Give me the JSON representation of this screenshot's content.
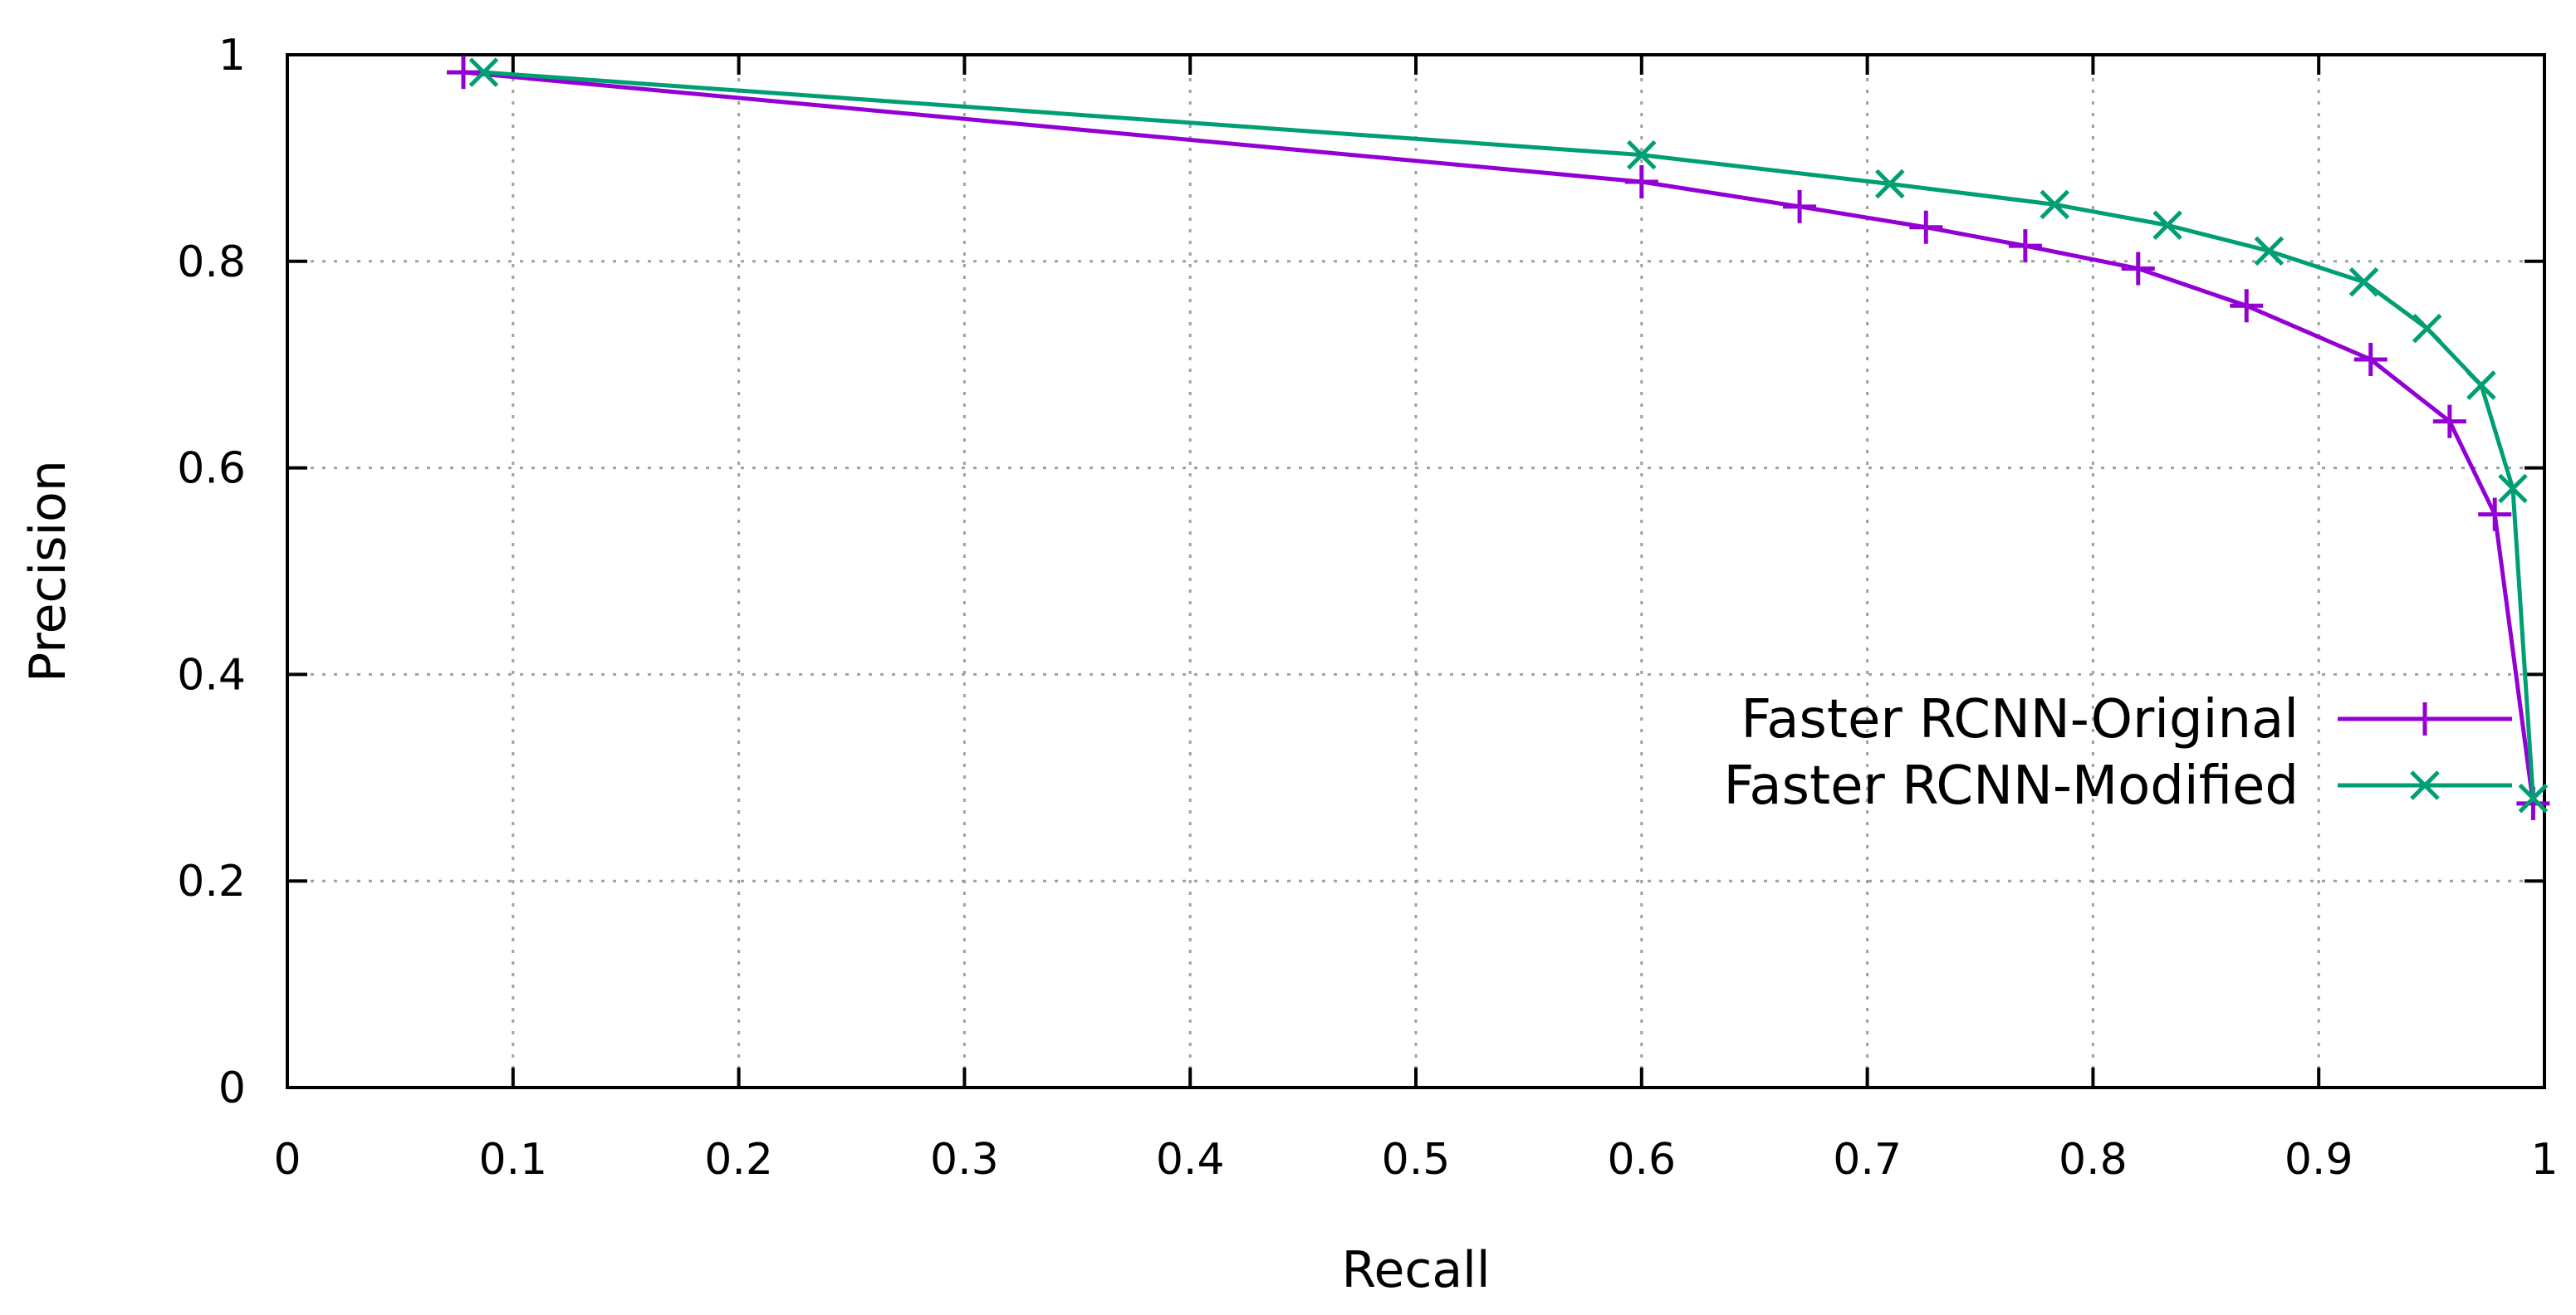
{
  "chart_data": {
    "type": "line",
    "title": "",
    "xlabel": "Recall",
    "ylabel": "Precision",
    "xlim": [
      0,
      1
    ],
    "ylim": [
      0,
      1
    ],
    "grid": true,
    "legend_position": "bottom-right",
    "x_ticks": [
      "0",
      "0.1",
      "0.2",
      "0.3",
      "0.4",
      "0.5",
      "0.6",
      "0.7",
      "0.8",
      "0.9",
      "1"
    ],
    "y_ticks": [
      "0",
      "0.2",
      "0.4",
      "0.6",
      "0.8",
      "1"
    ],
    "series": [
      {
        "name": "Faster RCNN-Original",
        "color": "#9400d3",
        "marker": "plus",
        "points": [
          [
            0.078,
            0.983
          ],
          [
            0.6,
            0.877
          ],
          [
            0.67,
            0.853
          ],
          [
            0.726,
            0.833
          ],
          [
            0.77,
            0.815
          ],
          [
            0.82,
            0.793
          ],
          [
            0.868,
            0.757
          ],
          [
            0.923,
            0.705
          ],
          [
            0.958,
            0.645
          ],
          [
            0.978,
            0.555
          ],
          [
            0.995,
            0.275
          ]
        ]
      },
      {
        "name": "Faster RCNN-Modified",
        "color": "#009e73",
        "marker": "cross",
        "points": [
          [
            0.087,
            0.983
          ],
          [
            0.6,
            0.903
          ],
          [
            0.71,
            0.875
          ],
          [
            0.783,
            0.855
          ],
          [
            0.833,
            0.835
          ],
          [
            0.878,
            0.81
          ],
          [
            0.92,
            0.78
          ],
          [
            0.948,
            0.735
          ],
          [
            0.972,
            0.68
          ],
          [
            0.986,
            0.58
          ],
          [
            0.995,
            0.28
          ]
        ]
      }
    ]
  }
}
